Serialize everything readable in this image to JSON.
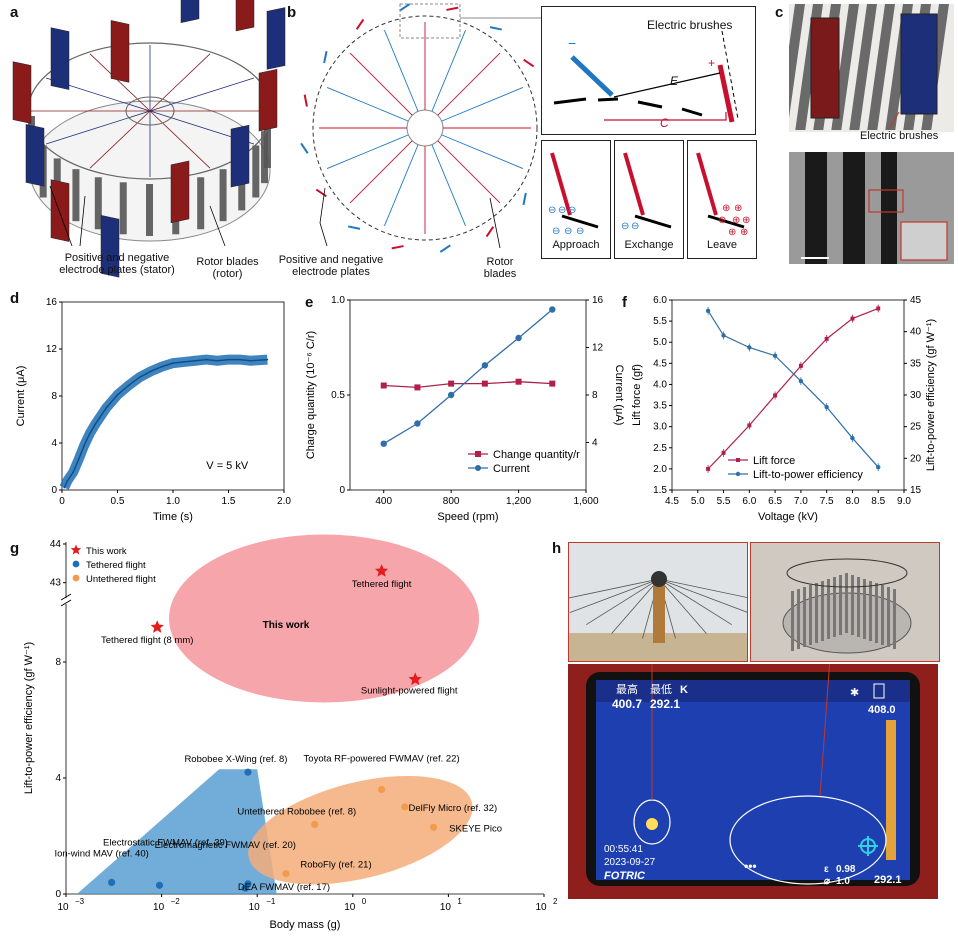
{
  "panel_letters": {
    "a": "a",
    "b": "b",
    "c": "c",
    "d": "d",
    "e": "e",
    "f": "f",
    "g": "g",
    "h": "h"
  },
  "panel_a": {
    "label_stator": "Positive and negative electrode plates (stator)",
    "label_rotor": "Rotor blades (rotor)",
    "colors": {
      "positive": "#8b1a1a",
      "negative": "#1e2f7a",
      "blade": "#555555"
    }
  },
  "panel_b": {
    "label_plates": "Positive and negative electrode plates",
    "label_rotor": "Rotor blades",
    "inset_title": "Electric brushes",
    "inset_E": "E",
    "inset_C": "C",
    "inset_minus": "−",
    "inset_plus": "+",
    "step_approach": "Approach",
    "step_exchange": "Exchange",
    "step_leave": "Leave",
    "charge_minus": "⊖",
    "charge_plus": "⊕",
    "colors": {
      "red": "#c8102e",
      "blue": "#1f77c4"
    }
  },
  "panel_c": {
    "label_brushes": "Electric brushes"
  },
  "charts": {
    "d": {
      "type": "line",
      "title": "",
      "xlabel": "Time (s)",
      "ylabel": "Current (μA)",
      "xlim": [
        0,
        2.0
      ],
      "ylim": [
        0,
        16
      ],
      "xticks": [
        "0",
        "0.5",
        "1.0",
        "1.5",
        "2.0"
      ],
      "yticks": [
        "0",
        "4",
        "8",
        "12",
        "16"
      ],
      "annotation": "V = 5 kV",
      "series": [
        {
          "name": "Current",
          "color": "#1f6fb4",
          "x": [
            0.02,
            0.05,
            0.1,
            0.15,
            0.2,
            0.25,
            0.3,
            0.4,
            0.5,
            0.6,
            0.7,
            0.8,
            0.9,
            1.0,
            1.1,
            1.2,
            1.3,
            1.4,
            1.5,
            1.6,
            1.7,
            1.85
          ],
          "y": [
            0.2,
            0.8,
            1.5,
            2.6,
            3.8,
            4.8,
            5.6,
            7.0,
            8.1,
            8.9,
            9.6,
            10.1,
            10.5,
            10.8,
            10.9,
            11.0,
            11.1,
            11.0,
            11.1,
            11.1,
            11.0,
            11.1
          ]
        }
      ]
    },
    "e": {
      "type": "line",
      "title": "",
      "xlabel": "Speed (rpm)",
      "ylabel": "Charge quantity (10⁻⁶ C/r)",
      "ylabel_right": "Current (μA)",
      "xlim": [
        200,
        1600
      ],
      "ylim": [
        0,
        1.0
      ],
      "ylim_right": [
        0,
        16
      ],
      "xticks": [
        "400",
        "800",
        "1,200",
        "1,600"
      ],
      "yticks": [
        "0",
        "0.5",
        "1.0"
      ],
      "yticks_right": [
        "4",
        "8",
        "12",
        "16"
      ],
      "legend": [
        "Change quantity/r",
        "Current"
      ],
      "series": [
        {
          "name": "Change quantity/r",
          "axis": "left",
          "marker": "square",
          "color": "#b0204a",
          "x": [
            400,
            600,
            800,
            1000,
            1200,
            1400
          ],
          "y": [
            0.55,
            0.54,
            0.56,
            0.56,
            0.57,
            0.56
          ]
        },
        {
          "name": "Current",
          "axis": "right",
          "marker": "circle",
          "color": "#2f6fa8",
          "x": [
            400,
            600,
            800,
            1000,
            1200,
            1400
          ],
          "y": [
            3.9,
            5.6,
            8.0,
            10.5,
            12.8,
            15.2
          ]
        }
      ]
    },
    "f": {
      "type": "line",
      "title": "",
      "xlabel": "Voltage (kV)",
      "ylabel": "Lift force (gf)",
      "ylabel_right": "Lift-to-power efficiency (gf W⁻¹)",
      "xlim": [
        4.5,
        9.0
      ],
      "ylim": [
        1.5,
        6.0
      ],
      "ylim_right": [
        15,
        45
      ],
      "xticks": [
        "4.5",
        "5.0",
        "5.5",
        "6.0",
        "6.5",
        "7.0",
        "7.5",
        "8.0",
        "8.5",
        "9.0"
      ],
      "yticks": [
        "1.5",
        "2.0",
        "2.5",
        "3.0",
        "3.5",
        "4.0",
        "4.5",
        "5.0",
        "5.5",
        "6.0"
      ],
      "yticks_right": [
        "15",
        "20",
        "25",
        "30",
        "35",
        "40",
        "45"
      ],
      "legend": [
        "Lift force",
        "Lift-to-power efficiency"
      ],
      "series": [
        {
          "name": "Lift force",
          "axis": "left",
          "marker": "square",
          "color": "#b0204a",
          "x": [
            5.2,
            5.5,
            6.0,
            6.5,
            7.0,
            7.5,
            8.0,
            8.5
          ],
          "y": [
            2.0,
            2.38,
            3.03,
            3.74,
            4.44,
            5.08,
            5.56,
            5.8
          ]
        },
        {
          "name": "Lift-to-power efficiency",
          "axis": "right",
          "marker": "circle",
          "color": "#2f6fa8",
          "x": [
            5.2,
            5.5,
            6.0,
            6.5,
            7.0,
            7.5,
            8.0,
            8.5
          ],
          "y": [
            43.3,
            39.4,
            37.5,
            36.2,
            32.2,
            28.1,
            23.2,
            18.6
          ]
        }
      ]
    },
    "g": {
      "type": "scatter",
      "title": "",
      "xlabel": "Body mass (g)",
      "ylabel": "Lift-to-power efficiency (gf W⁻¹)",
      "xscale": "log",
      "xlim": [
        0.001,
        100
      ],
      "ylim": [
        0,
        44
      ],
      "axis_break": "between 10 and 42.5",
      "xticks_base": [
        "10",
        "10",
        "10",
        "10",
        "10",
        "10"
      ],
      "xticks_exp": [
        "−3",
        "−2",
        "−1",
        "0",
        "1",
        "2"
      ],
      "yticks": [
        "0",
        "4",
        "8",
        "43",
        "44"
      ],
      "legend": [
        "This work",
        "Tethered flight",
        "Untethered flight"
      ],
      "region_label_this_work": "This work",
      "series": [
        {
          "name": "This work",
          "marker": "star",
          "color": "#e11d1d",
          "points": [
            {
              "x": 2.0,
              "y": 43.3,
              "label": "Tethered flight"
            },
            {
              "x": 0.009,
              "y": 9.2,
              "label": "Tethered flight (8 mm)"
            },
            {
              "x": 4.5,
              "y": 7.4,
              "label": "Sunlight-powered flight"
            }
          ]
        },
        {
          "name": "Tethered flight",
          "marker": "circle",
          "color": "#1f6fb4",
          "points": [
            {
              "x": 0.003,
              "y": 0.4,
              "label": "Ion-wind MAV (ref. 40)"
            },
            {
              "x": 0.0095,
              "y": 0.3,
              "label": "Electrostatic FWMAV (ref. 39)"
            },
            {
              "x": 0.075,
              "y": 0.2,
              "label": "Electromagnetic FWMAV (ref. 20)"
            },
            {
              "x": 0.08,
              "y": 4.2,
              "label": "Robobee X-Wing (ref. 8)"
            },
            {
              "x": 0.08,
              "y": 0.35,
              "label": "DEA FWMAV (ref. 17)"
            }
          ]
        },
        {
          "name": "Untethered flight",
          "marker": "circle",
          "color": "#f39a4c",
          "points": [
            {
              "x": 0.2,
              "y": 0.7,
              "label": "RoboFly (ref. 21)"
            },
            {
              "x": 0.4,
              "y": 2.4,
              "label": "Untethered Robobee (ref. 8)"
            },
            {
              "x": 2.0,
              "y": 3.6,
              "label": "Toyota RF-powered FWMAV (ref. 22)"
            },
            {
              "x": 3.5,
              "y": 3.0,
              "label": "DelFly Micro (ref. 32)"
            },
            {
              "x": 7.0,
              "y": 2.3,
              "label": "SKEYE Pico"
            }
          ]
        }
      ]
    }
  },
  "panel_h": {
    "label_max": "最高",
    "label_min": "最低",
    "unit": "K",
    "max_value": "400.7",
    "min_value": "292.1",
    "scale_top": "408.0",
    "scale_bottom": "292.1",
    "time": "00:55:41",
    "date": "2023-09-27",
    "brand": "FOTRIC",
    "emissivity": "0.98",
    "distance": "1.0",
    "more": "•••",
    "epsilon_symbol": "ε",
    "distance_symbol": "⌀",
    "icon_bluetooth": "bluetooth-icon",
    "icon_battery": "battery-icon"
  }
}
